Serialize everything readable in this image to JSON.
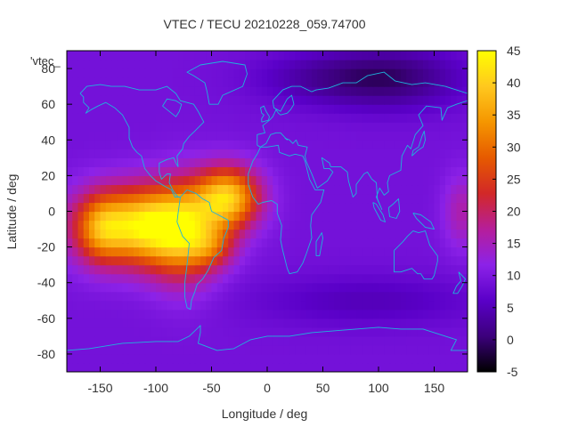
{
  "chart_data": {
    "type": "heatmap",
    "title": "VTEC / TECU 20210228_059.74700",
    "xlabel": "Longitude / deg",
    "ylabel": "Latitude / deg",
    "series_key": "'vtec_",
    "xlim": [
      -180,
      180
    ],
    "ylim": [
      -90,
      90
    ],
    "x_ticks": [
      -150,
      -100,
      -50,
      0,
      50,
      100,
      150
    ],
    "y_ticks": [
      -80,
      -60,
      -40,
      -20,
      0,
      20,
      40,
      60,
      80
    ],
    "colorbar": {
      "range": [
        -5,
        45
      ],
      "ticks": [
        -5,
        0,
        5,
        10,
        15,
        20,
        25,
        30,
        35,
        40,
        45
      ],
      "colormap": [
        "#000000",
        "#3c007c",
        "#5a00c8",
        "#8c22e8",
        "#b61e9a",
        "#d22828",
        "#e65a00",
        "#f59600",
        "#ffc81e",
        "#ffff00"
      ]
    },
    "grid": false,
    "coastline_color": "#1eb4dc",
    "tec_background": 9,
    "tec_features": [
      {
        "lon": -115,
        "lat": -8,
        "slon": 38,
        "slat": 15,
        "amp": 33
      },
      {
        "lon": -75,
        "lat": -12,
        "slon": 22,
        "slat": 20,
        "amp": 18
      },
      {
        "lon": -35,
        "lat": 8,
        "slon": 20,
        "slat": 12,
        "amp": 29
      },
      {
        "lon": -50,
        "lat": -20,
        "slon": 15,
        "slat": 8,
        "amp": 10
      },
      {
        "lon": -150,
        "lat": -10,
        "slon": 14,
        "slat": 13,
        "amp": 10
      },
      {
        "lon": 175,
        "lat": 0,
        "slon": 12,
        "slat": 15,
        "amp": 7
      },
      {
        "lon": 110,
        "lat": 75,
        "slon": 45,
        "slat": 12,
        "amp": -9
      },
      {
        "lon": 40,
        "lat": 75,
        "slon": 40,
        "slat": 10,
        "amp": -4
      },
      {
        "lon": 90,
        "lat": -50,
        "slon": 70,
        "slat": 10,
        "amp": -4
      }
    ]
  }
}
